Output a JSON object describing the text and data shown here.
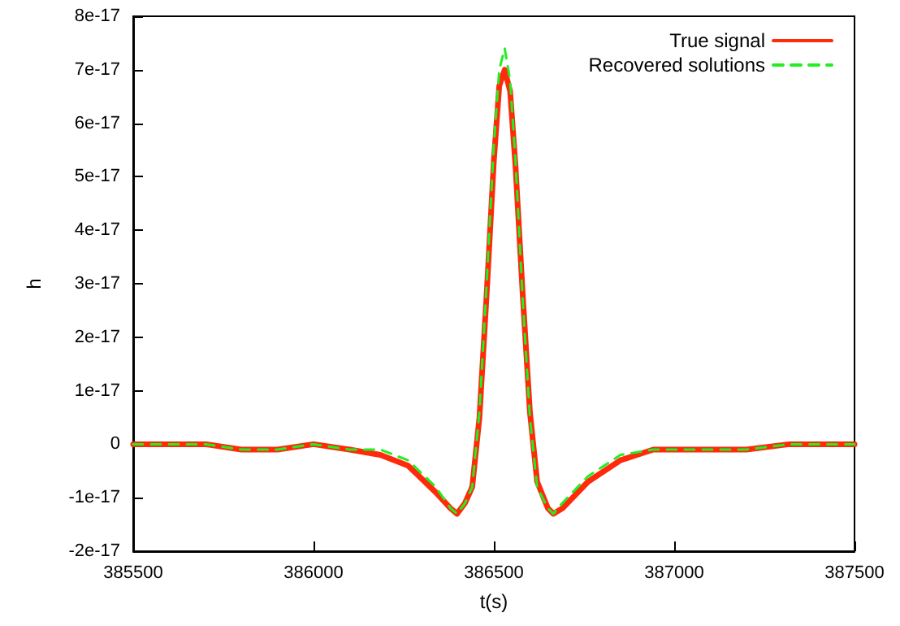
{
  "chart_data": {
    "type": "line",
    "xlabel": "t(s)",
    "ylabel": "h",
    "xlim": [
      385500,
      387500
    ],
    "xticks": [
      385500,
      386000,
      386500,
      387000,
      387500
    ],
    "ylim": [
      -2e-17,
      8e-17
    ],
    "yticks": [
      -2e-17,
      -1e-17,
      0,
      1e-17,
      2e-17,
      3e-17,
      4e-17,
      5e-17,
      6e-17,
      7e-17,
      8e-17
    ],
    "legend": "top right",
    "marker": "none",
    "series": [
      {
        "name": "True signal",
        "color": "#ff2a0a",
        "line_style": "solid",
        "x": [
          385500,
          385600,
          385700,
          385800,
          385900,
          386000,
          386100,
          386185,
          386262,
          386339,
          386380,
          386398,
          386420,
          386440,
          386460,
          386480,
          386500,
          386515,
          386530,
          386545,
          386560,
          386580,
          386600,
          386620,
          386650,
          386665,
          386690,
          386761,
          386851,
          386942,
          387000,
          387092,
          387200,
          387319,
          387400,
          387500
        ],
        "values": [
          0,
          0,
          0,
          -1e-18,
          -1e-18,
          0,
          -1e-18,
          -2e-18,
          -4e-18,
          -9e-18,
          -1.2e-17,
          -1.3e-17,
          -1.1e-17,
          -8e-18,
          5e-18,
          2.8e-17,
          5.3e-17,
          6.7e-17,
          7e-17,
          6.6e-17,
          5.2e-17,
          2.8e-17,
          6e-18,
          -7e-18,
          -1.2e-17,
          -1.3e-17,
          -1.2e-17,
          -7e-18,
          -3e-18,
          -1e-18,
          -1e-18,
          -1e-18,
          -1e-18,
          0,
          0,
          0
        ]
      },
      {
        "name": "Recovered solutions",
        "color": "#22ee22",
        "line_style": "dashed",
        "x": [
          385500,
          385600,
          385700,
          385800,
          385900,
          386000,
          386100,
          386185,
          386262,
          386339,
          386380,
          386398,
          386420,
          386440,
          386460,
          386480,
          386500,
          386515,
          386530,
          386545,
          386560,
          386580,
          386600,
          386620,
          386650,
          386665,
          386690,
          386761,
          386851,
          386942,
          387000,
          387092,
          387200,
          387319,
          387400,
          387500
        ],
        "values": [
          0,
          0,
          0,
          -1e-18,
          -1e-18,
          0,
          -1e-18,
          -1e-18,
          -3e-18,
          -8e-18,
          -1.2e-17,
          -1.3e-17,
          -1.1e-17,
          -8e-18,
          6e-18,
          3e-17,
          5.6e-17,
          7e-17,
          7.4e-17,
          6.8e-17,
          5.3e-17,
          2.7e-17,
          5e-18,
          -8e-18,
          -1.2e-17,
          -1.3e-17,
          -1.1e-17,
          -6e-18,
          -2e-18,
          -1e-18,
          -1e-18,
          -1e-18,
          -1e-18,
          0,
          0,
          0
        ]
      }
    ]
  }
}
